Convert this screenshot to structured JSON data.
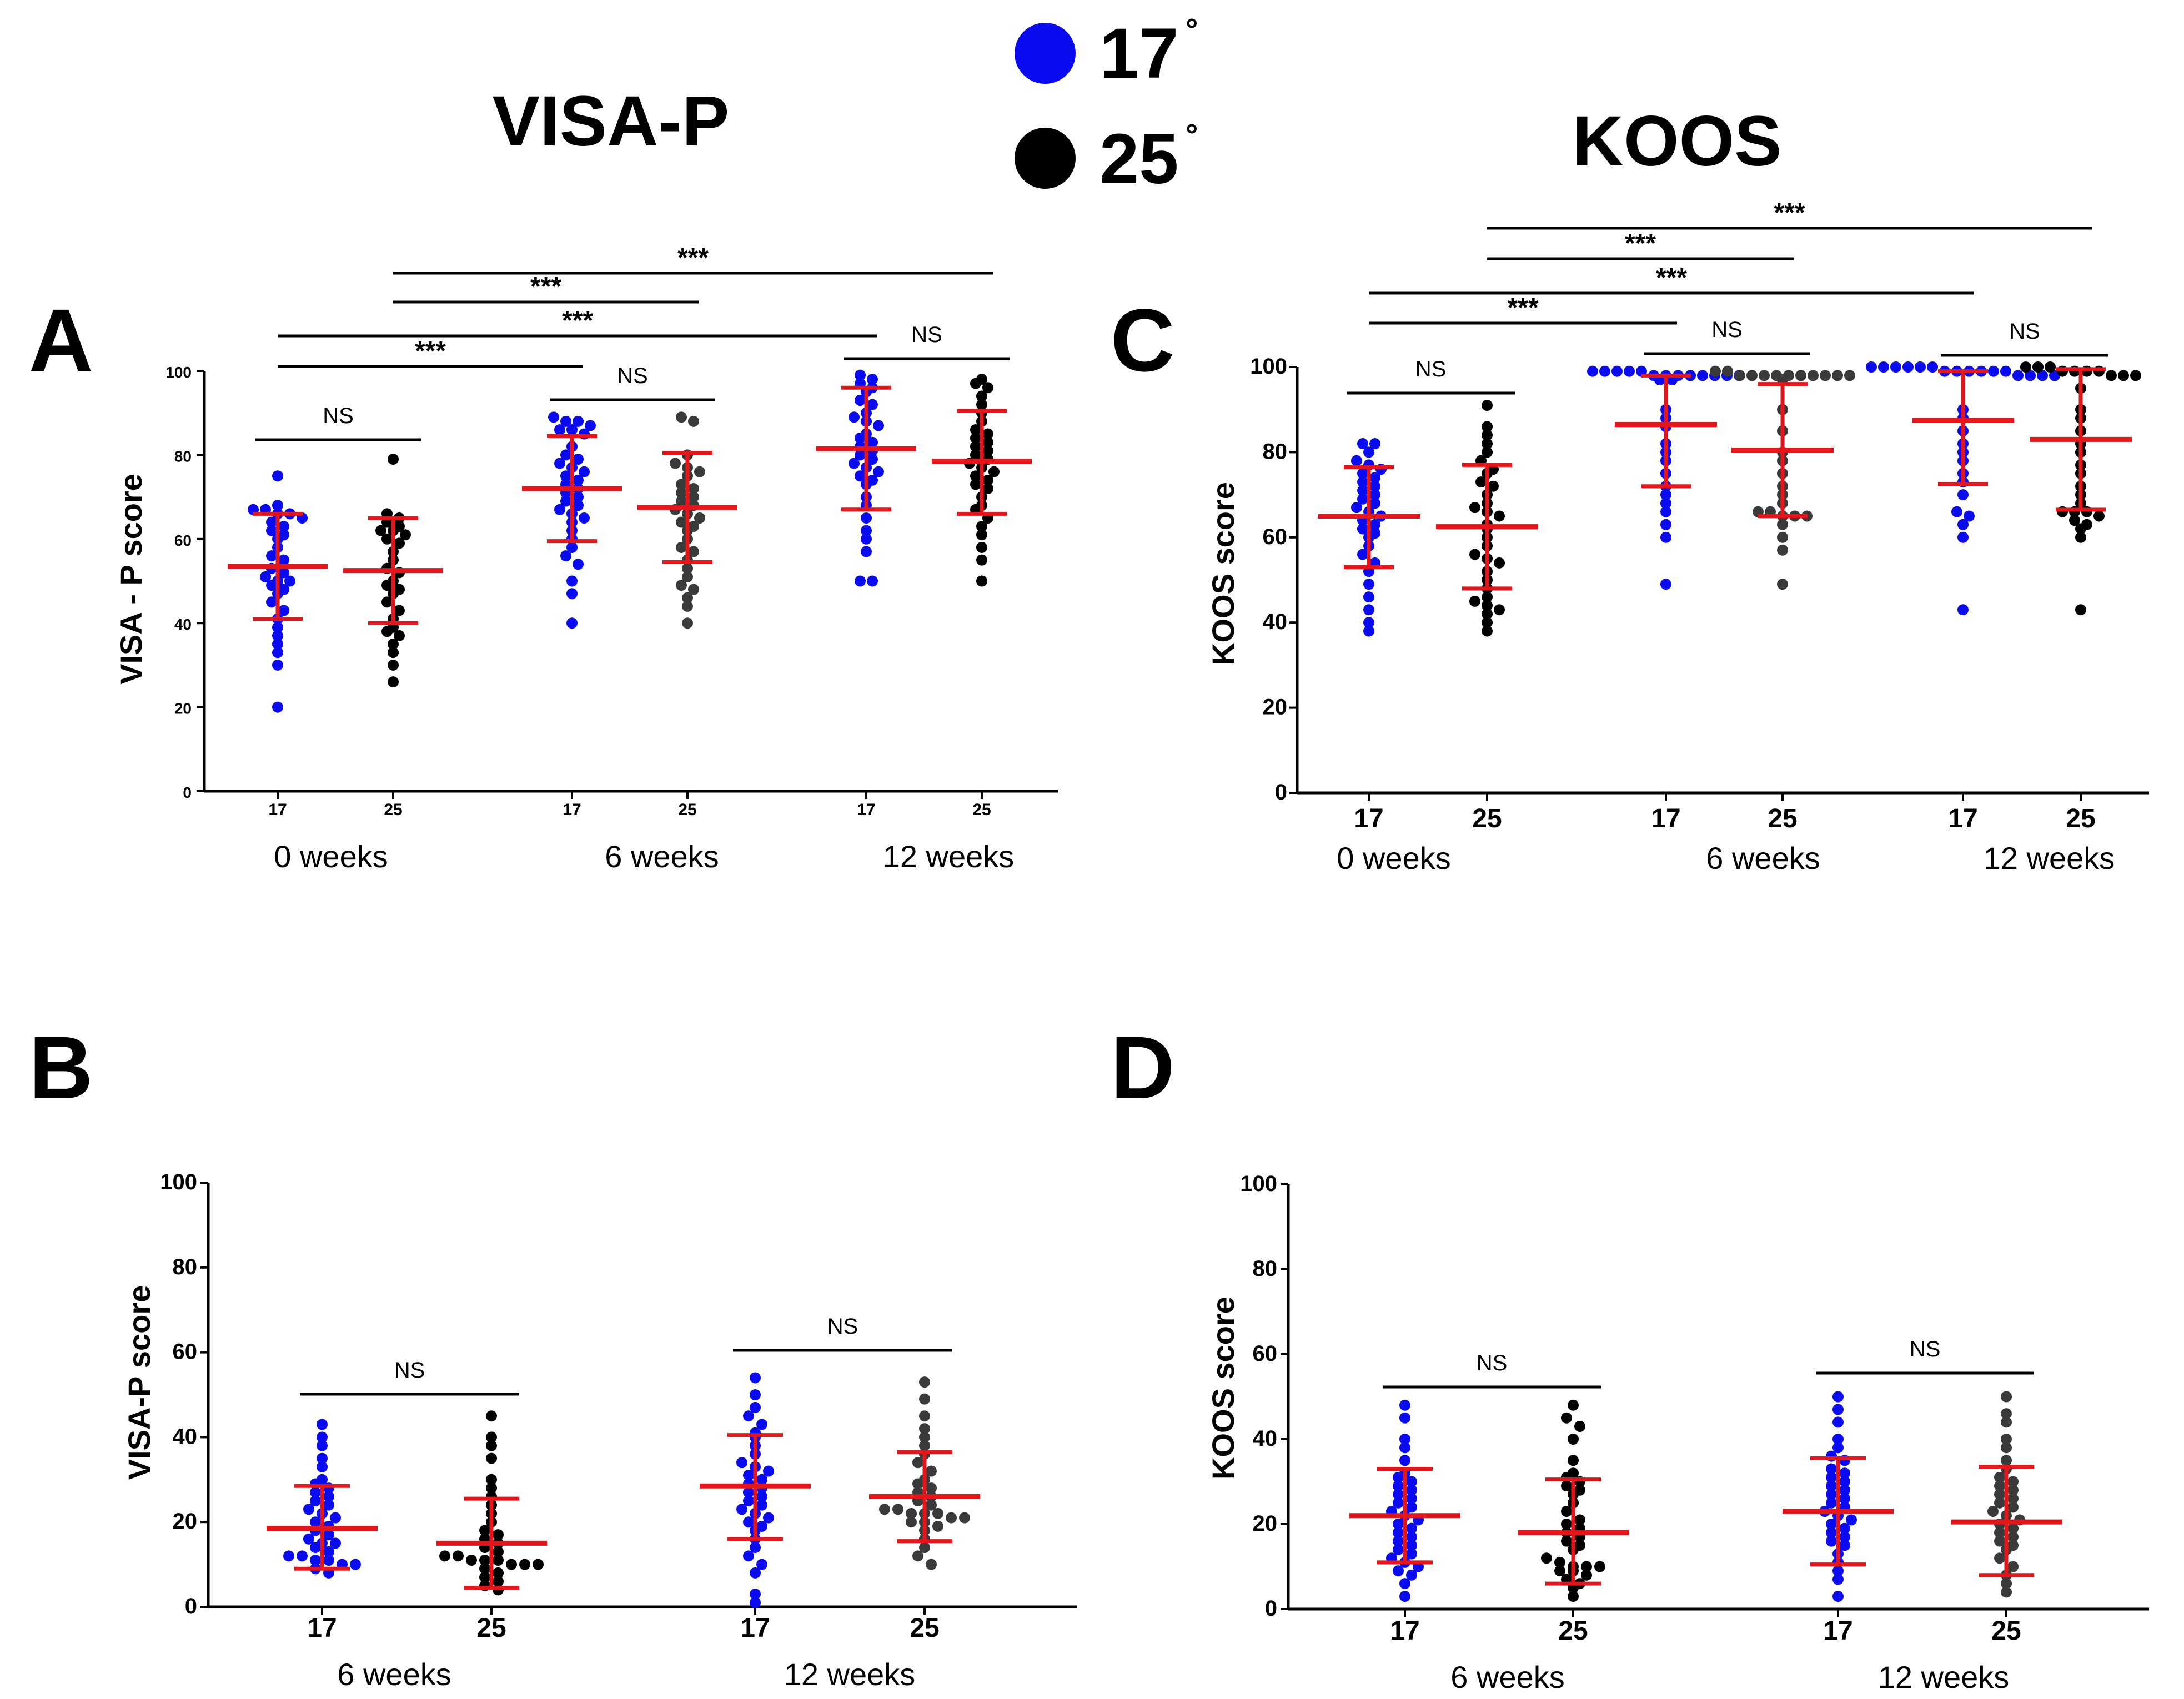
{
  "titles": {
    "visa": "VISA-P",
    "koos": "KOOS"
  },
  "legend": [
    {
      "label": "17",
      "degree": "°",
      "color": "#0b0bf0"
    },
    {
      "label": "25",
      "degree": "°",
      "color": "#000000"
    }
  ],
  "colors": {
    "blue": "#0b0bf0",
    "black": "#000000",
    "gray": "#3a3a3a",
    "red": "#e3161c"
  },
  "chart_data": [
    {
      "panel": "A",
      "type": "scatter",
      "ylabel": "VISA - P score",
      "ylim": [
        0,
        100
      ],
      "yticks": [
        "0",
        "20",
        "40",
        "60",
        "80",
        "100"
      ],
      "groups": [
        "0 weeks",
        "6 weeks",
        "12 weeks"
      ],
      "series": [
        {
          "name": "17",
          "group": "0 weeks",
          "color": "blue",
          "mean": 53.5,
          "sd_low": 41,
          "sd_high": 66,
          "values": [
            75,
            68,
            67,
            67,
            66,
            66,
            65,
            64,
            63,
            62,
            61,
            60,
            58,
            56,
            55,
            53,
            52,
            51,
            50,
            50,
            49,
            48,
            47,
            45,
            43,
            41,
            39,
            37,
            35,
            33,
            30,
            20
          ]
        },
        {
          "name": "25",
          "group": "0 weeks",
          "color": "black",
          "mean": 52.5,
          "sd_low": 40,
          "sd_high": 65,
          "values": [
            79,
            66,
            65,
            64,
            63,
            62,
            62,
            61,
            60,
            59,
            57,
            55,
            53,
            52,
            50,
            49,
            48,
            47,
            45,
            43,
            41,
            39,
            38,
            37,
            35,
            33,
            30,
            26
          ]
        },
        {
          "name": "17",
          "group": "6 weeks",
          "color": "blue",
          "mean": 72,
          "sd_low": 59.5,
          "sd_high": 84.5,
          "values": [
            89,
            88,
            88,
            87,
            86,
            86,
            85,
            82,
            80,
            79,
            78,
            77,
            76,
            75,
            74,
            73,
            72,
            71,
            70,
            69,
            68,
            67,
            66,
            65,
            64,
            62,
            60,
            58,
            56,
            54,
            50,
            47,
            40
          ]
        },
        {
          "name": "25",
          "group": "6 weeks",
          "color": "gray",
          "mean": 67.5,
          "sd_low": 54.5,
          "sd_high": 80.5,
          "values": [
            89,
            88,
            80,
            78,
            77,
            76,
            75,
            73,
            72,
            71,
            70,
            69,
            68,
            67,
            66,
            65,
            64,
            63,
            62,
            60,
            58,
            57,
            55,
            53,
            51,
            49,
            48,
            46,
            44,
            40
          ]
        },
        {
          "name": "17",
          "group": "12 weeks",
          "color": "blue",
          "mean": 81.5,
          "sd_low": 67,
          "sd_high": 96,
          "values": [
            99,
            98,
            97,
            96,
            95,
            93,
            92,
            90,
            89,
            88,
            87,
            85,
            84,
            83,
            82,
            81,
            80,
            79,
            78,
            77,
            76,
            75,
            74,
            73,
            70,
            68,
            65,
            62,
            60,
            57,
            50,
            50
          ]
        },
        {
          "name": "25",
          "group": "12 weeks",
          "color": "black",
          "mean": 78.5,
          "sd_low": 66,
          "sd_high": 90.5,
          "values": [
            98,
            97,
            96,
            94,
            92,
            90,
            88,
            86,
            85,
            84,
            83,
            82,
            81,
            80,
            79,
            78,
            77,
            76,
            75,
            74,
            73,
            72,
            70,
            68,
            67,
            65,
            63,
            61,
            58,
            55,
            50
          ]
        }
      ],
      "comparisons": [
        {
          "label": "NS",
          "from": "0 weeks 17",
          "to": "0 weeks 25"
        },
        {
          "label": "NS",
          "from": "6 weeks 17",
          "to": "6 weeks 25"
        },
        {
          "label": "NS",
          "from": "12 weeks 17",
          "to": "12 weeks 25"
        },
        {
          "label": "***",
          "from": "0 weeks 17",
          "to": "6 weeks 17"
        },
        {
          "label": "***",
          "from": "0 weeks 17",
          "to": "12 weeks 17"
        },
        {
          "label": "***",
          "from": "0 weeks 25",
          "to": "6 weeks 25"
        },
        {
          "label": "***",
          "from": "0 weeks 25",
          "to": "12 weeks 25"
        }
      ]
    },
    {
      "panel": "C",
      "type": "scatter",
      "ylabel": "KOOS score",
      "ylim": [
        0,
        100
      ],
      "yticks": [
        "0",
        "20",
        "40",
        "60",
        "80",
        "100"
      ],
      "groups": [
        "0 weeks",
        "6 weeks",
        "12 weeks"
      ],
      "series": [
        {
          "name": "17",
          "group": "0 weeks",
          "color": "blue",
          "mean": 65,
          "sd_low": 53,
          "sd_high": 76.5,
          "values": [
            82,
            82,
            80,
            78,
            77,
            76,
            75,
            74,
            73,
            72,
            71,
            70,
            69,
            68,
            67,
            66,
            65,
            64,
            63,
            62,
            61,
            60,
            58,
            56,
            54,
            52,
            49,
            46,
            43,
            40,
            38
          ]
        },
        {
          "name": "25",
          "group": "0 weeks",
          "color": "black",
          "mean": 62.5,
          "sd_low": 48,
          "sd_high": 77,
          "values": [
            91,
            86,
            84,
            82,
            80,
            78,
            76,
            75,
            73,
            72,
            70,
            68,
            67,
            66,
            65,
            63,
            62,
            60,
            58,
            56,
            55,
            54,
            52,
            50,
            48,
            46,
            45,
            44,
            43,
            42,
            40,
            38
          ]
        },
        {
          "name": "17",
          "group": "6 weeks",
          "color": "blue",
          "mean": 86.5,
          "sd_low": 72,
          "sd_high": 98,
          "values": [
            99,
            99,
            99,
            99,
            99,
            98,
            98,
            98,
            98,
            98,
            98,
            98,
            98,
            97,
            97,
            90,
            88,
            86,
            82,
            80,
            78,
            75,
            72,
            70,
            68,
            66,
            63,
            60,
            49
          ]
        },
        {
          "name": "25",
          "group": "6 weeks",
          "color": "gray",
          "mean": 80.5,
          "sd_low": 65,
          "sd_high": 96,
          "values": [
            99,
            99,
            98,
            98,
            98,
            98,
            98,
            98,
            98,
            98,
            98,
            98,
            97,
            90,
            85,
            80,
            78,
            75,
            72,
            70,
            68,
            66,
            66,
            65,
            65,
            65,
            63,
            60,
            57,
            49
          ]
        },
        {
          "name": "17",
          "group": "12 weeks",
          "color": "blue",
          "mean": 87.5,
          "sd_low": 72.5,
          "sd_high": 99,
          "values": [
            100,
            100,
            100,
            100,
            100,
            100,
            99,
            99,
            99,
            99,
            99,
            99,
            98,
            98,
            98,
            98,
            90,
            88,
            85,
            82,
            80,
            78,
            75,
            73,
            70,
            66,
            65,
            63,
            60,
            43
          ]
        },
        {
          "name": "25",
          "group": "12 weeks",
          "color": "black",
          "mean": 83,
          "sd_low": 66.5,
          "sd_high": 99.5,
          "values": [
            100,
            100,
            100,
            99,
            99,
            99,
            99,
            98,
            98,
            98,
            95,
            90,
            88,
            85,
            82,
            80,
            77,
            75,
            72,
            70,
            68,
            66,
            66,
            66,
            65,
            64,
            63,
            62,
            60,
            43
          ]
        }
      ],
      "comparisons": [
        {
          "label": "NS",
          "from": "0 weeks 17",
          "to": "0 weeks 25"
        },
        {
          "label": "NS",
          "from": "6 weeks 17",
          "to": "6 weeks 25"
        },
        {
          "label": "NS",
          "from": "12 weeks 17",
          "to": "12 weeks 25"
        },
        {
          "label": "***",
          "from": "0 weeks 17",
          "to": "6 weeks 17"
        },
        {
          "label": "***",
          "from": "0 weeks 17",
          "to": "12 weeks 17"
        },
        {
          "label": "***",
          "from": "0 weeks 25",
          "to": "6 weeks 25"
        },
        {
          "label": "***",
          "from": "0 weeks 25",
          "to": "12 weeks 25"
        }
      ]
    },
    {
      "panel": "B",
      "type": "scatter",
      "ylabel": "VISA-P score",
      "ylim": [
        0,
        100
      ],
      "yticks": [
        "0",
        "20",
        "40",
        "60",
        "80",
        "100"
      ],
      "groups": [
        "6 weeks",
        "12 weeks"
      ],
      "series": [
        {
          "name": "17",
          "group": "6 weeks",
          "color": "blue",
          "mean": 18.5,
          "sd_low": 9,
          "sd_high": 28.5,
          "values": [
            43,
            40,
            38,
            35,
            33,
            30,
            29,
            28,
            27,
            26,
            25,
            24,
            23,
            22,
            21,
            20,
            19,
            18,
            17,
            16,
            15,
            15,
            14,
            13,
            12,
            12,
            11,
            11,
            10,
            10,
            9,
            8
          ]
        },
        {
          "name": "25",
          "group": "6 weeks",
          "color": "black",
          "mean": 15,
          "sd_low": 4.5,
          "sd_high": 25.5,
          "values": [
            45,
            40,
            38,
            35,
            30,
            28,
            26,
            24,
            22,
            20,
            18,
            17,
            16,
            15,
            14,
            13,
            12,
            12,
            11,
            11,
            11,
            10,
            10,
            10,
            9,
            8,
            7,
            6,
            5,
            4
          ]
        },
        {
          "name": "17",
          "group": "12 weeks",
          "color": "blue",
          "mean": 28.5,
          "sd_low": 16,
          "sd_high": 40.5,
          "values": [
            54,
            50,
            47,
            45,
            43,
            41,
            40,
            38,
            36,
            34,
            33,
            32,
            31,
            30,
            29,
            28,
            27,
            26,
            25,
            24,
            23,
            22,
            21,
            20,
            19,
            18,
            16,
            14,
            12,
            10,
            8,
            3,
            1
          ]
        },
        {
          "name": "25",
          "group": "12 weeks",
          "color": "gray",
          "mean": 26,
          "sd_low": 15.5,
          "sd_high": 36.5,
          "values": [
            53,
            49,
            45,
            42,
            40,
            38,
            36,
            34,
            32,
            30,
            29,
            28,
            27,
            26,
            25,
            24,
            23,
            23,
            22,
            22,
            22,
            21,
            21,
            20,
            20,
            19,
            18,
            16,
            14,
            12,
            10
          ]
        }
      ],
      "comparisons": [
        {
          "label": "NS",
          "from": "6 weeks 17",
          "to": "6 weeks 25"
        },
        {
          "label": "NS",
          "from": "12 weeks 17",
          "to": "12 weeks 25"
        }
      ]
    },
    {
      "panel": "D",
      "type": "scatter",
      "ylabel": "KOOS score",
      "ylim": [
        0,
        100
      ],
      "yticks": [
        "0",
        "20",
        "40",
        "60",
        "80",
        "100"
      ],
      "groups": [
        "6 weeks",
        "12 weeks"
      ],
      "series": [
        {
          "name": "17",
          "group": "6 weeks",
          "color": "blue",
          "mean": 22,
          "sd_low": 11,
          "sd_high": 33,
          "values": [
            48,
            45,
            40,
            38,
            35,
            32,
            31,
            30,
            29,
            28,
            27,
            26,
            25,
            24,
            23,
            22,
            21,
            20,
            19,
            18,
            17,
            16,
            15,
            14,
            13,
            12,
            11,
            10,
            9,
            8,
            6,
            3
          ]
        },
        {
          "name": "25",
          "group": "6 weeks",
          "color": "black",
          "mean": 18,
          "sd_low": 6,
          "sd_high": 30.5,
          "values": [
            48,
            45,
            43,
            40,
            35,
            32,
            31,
            30,
            29,
            28,
            27,
            25,
            23,
            21,
            20,
            19,
            18,
            17,
            16,
            15,
            14,
            12,
            11,
            10,
            10,
            10,
            9,
            9,
            8,
            7,
            6,
            5,
            3
          ]
        },
        {
          "name": "17",
          "group": "12 weeks",
          "color": "blue",
          "mean": 23,
          "sd_low": 10.5,
          "sd_high": 35.5,
          "values": [
            50,
            47,
            44,
            40,
            38,
            36,
            35,
            33,
            32,
            31,
            30,
            29,
            28,
            27,
            26,
            25,
            24,
            23,
            22,
            21,
            20,
            19,
            18,
            17,
            16,
            15,
            13,
            11,
            9,
            7,
            3
          ]
        },
        {
          "name": "25",
          "group": "12 weeks",
          "color": "gray",
          "mean": 20.5,
          "sd_low": 8,
          "sd_high": 33.5,
          "values": [
            50,
            46,
            44,
            40,
            38,
            35,
            33,
            31,
            30,
            29,
            28,
            27,
            26,
            25,
            24,
            23,
            22,
            21,
            20,
            19,
            18,
            17,
            16,
            15,
            14,
            12,
            10,
            8,
            6,
            4
          ]
        }
      ],
      "comparisons": [
        {
          "label": "NS",
          "from": "6 weeks 17",
          "to": "6 weeks 25"
        },
        {
          "label": "NS",
          "from": "12 weeks 17",
          "to": "12 weeks 25"
        }
      ]
    }
  ]
}
